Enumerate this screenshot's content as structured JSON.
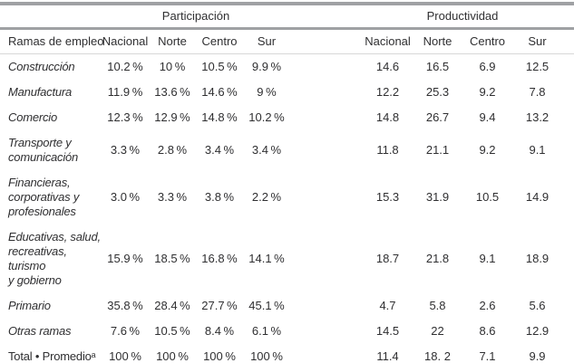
{
  "colors": {
    "background": "#ffffff",
    "text": "#2f2f31",
    "rule_heavy": "#9fa1a4",
    "rule_bottom": "#a8aaad",
    "rule_thin": "#d8d8d8"
  },
  "chart_data": {
    "type": "table",
    "row_header": "Ramas de empleo",
    "column_groups": [
      "Participación",
      "Productividad"
    ],
    "columns": [
      "Nacional",
      "Norte",
      "Centro",
      "Sur",
      "Nacional",
      "Norte",
      "Centro",
      "Sur"
    ],
    "rows": [
      {
        "label": "Construcción",
        "values": [
          "10.2 %",
          "10 %",
          "10.5 %",
          "9.9 %",
          "14.6",
          "16.5",
          "6.9",
          "12.5"
        ]
      },
      {
        "label": "Manufactura",
        "values": [
          "11.9 %",
          "13.6 %",
          "14.6 %",
          "9 %",
          "12.2",
          "25.3",
          "9.2",
          "7.8"
        ]
      },
      {
        "label": "Comercio",
        "values": [
          "12.3 %",
          "12.9 %",
          "14.8 %",
          "10.2 %",
          "14.8",
          "26.7",
          "9.4",
          "13.2"
        ]
      },
      {
        "label": "Transporte y\ncomunicación",
        "values": [
          "3.3 %",
          "2.8 %",
          "3.4 %",
          "3.4 %",
          "11.8",
          "21.1",
          "9.2",
          "9.1"
        ]
      },
      {
        "label": "Financieras,\ncorporativas y\nprofesionales",
        "values": [
          "3.0 %",
          "3.3 %",
          "3.8 %",
          "2.2 %",
          "15.3",
          "31.9",
          "10.5",
          "14.9"
        ]
      },
      {
        "label": "Educativas, salud,\nrecreativas, turismo\ny gobierno",
        "values": [
          "15.9 %",
          "18.5 %",
          "16.8 %",
          "14.1 %",
          "18.7",
          "21.8",
          "9.1",
          "18.9"
        ]
      },
      {
        "label": "Primario",
        "values": [
          "35.8 %",
          "28.4 %",
          "27.7 %",
          "45.1 %",
          "4.7",
          "5.8",
          "2.6",
          "5.6"
        ]
      },
      {
        "label": "Otras ramas",
        "values": [
          "7.6 %",
          "10.5 %",
          "8.4 %",
          "6.1 %",
          "14.5",
          "22",
          "8.6",
          "12.9"
        ]
      },
      {
        "label": "Total • Promedioᵃ",
        "values": [
          "100 %",
          "100 %",
          "100 %",
          "100 %",
          "11.4",
          "18. 2",
          "7.1",
          "9.9"
        ]
      }
    ]
  }
}
